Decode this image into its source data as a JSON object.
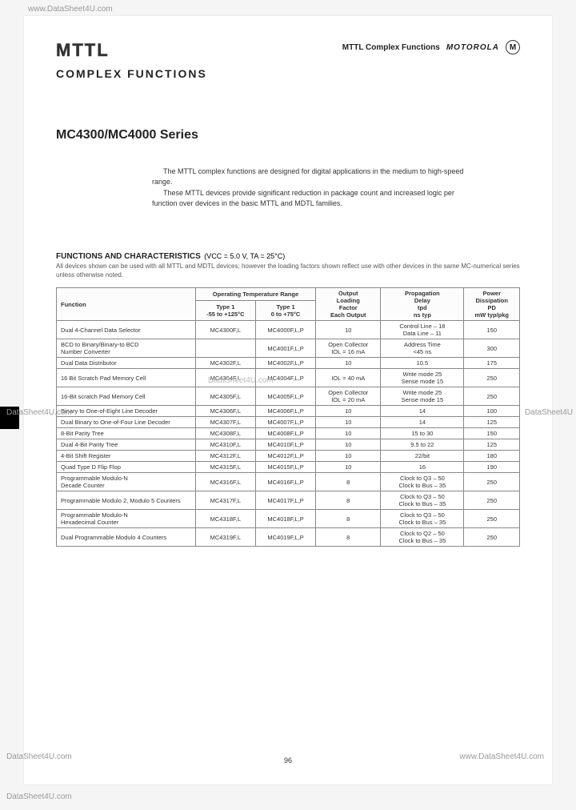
{
  "watermarks": {
    "top_left": "www.DataSheet4U.com",
    "mid_left": "DataSheet4U.com",
    "mid_right": "DataSheet4U",
    "bot_left1": "DataSheet4U.com",
    "bot_right": "www.DataSheet4U.com",
    "bot_left2": "DataSheet4U.com"
  },
  "header": {
    "logo": "MTTL",
    "right_text": "MTTL Complex Functions",
    "brand": "MOTOROLA",
    "brand_icon": "M"
  },
  "subtitle": "COMPLEX FUNCTIONS",
  "series": "MC4300/MC4000 Series",
  "intro": {
    "p1": "The MTTL complex functions are designed for digital applications in the medium to high-speed range.",
    "p2": "These MTTL devices provide significant reduction in package count and increased logic per function over devices in the basic MTTL and MDTL families."
  },
  "table_title": "FUNCTIONS AND CHARACTERISTICS",
  "table_cond": "(VCC = 5.0 V, TA = 25°C)",
  "table_sub": "All devices shown can be used with all MTTL and MDTL devices; however the loading factors shown reflect use with other devices in the same MC-numerical series unless otherwise noted.",
  "cols": {
    "function": "Function",
    "otr": "Operating Temperature Range",
    "type1a": "Type 1\n-55 to +125°C",
    "type1b": "Type 1\n0 to +75°C",
    "load": "Output\nLoading\nFactor\nEach Output",
    "prop": "Propagation\nDelay\ntpd\nns typ",
    "pow": "Power\nDissipation\nPD\nmW typ/pkg"
  },
  "rows": [
    {
      "fn": "Dual 4-Channel Data Selector",
      "t1": "MC4300F,L",
      "t2": "MC4000F,L,P",
      "load": "10",
      "prop": "Control Line – 18\nData Line – 11",
      "pow": "150"
    },
    {
      "fn": "BCD to Binary/Binary-to BCD\nNumber Converter",
      "t1": "",
      "t2": "MC4001F,L,P",
      "load": "Open Collector\nIOL = 16 mA",
      "prop": "Address Time\n<45 ns",
      "pow": "300"
    },
    {
      "fn": "Dual Data Distributor",
      "t1": "MC4302F,L",
      "t2": "MC4002F,L,P",
      "load": "10",
      "prop": "10.5",
      "pow": "175"
    },
    {
      "fn": "16 Bit Scratch Pad Memory Cell",
      "t1": "MC4304F,L",
      "t2": "MC4004F,L,P",
      "load": "IOL = 40 mA",
      "prop": "Write mode 25\nSense mode 15",
      "pow": "250"
    },
    {
      "fn": "16-Bit scratch Pad Memory Cell",
      "t1": "MC4305F,L",
      "t2": "MC4005F,L,P",
      "load": "Open Collector\nIOL = 20 mA",
      "prop": "Write mode 25\nSense mode 15",
      "pow": "250"
    },
    {
      "fn": "Binary to One-of-Eight Line Decoder",
      "t1": "MC4306F,L",
      "t2": "MC4006F,L,P",
      "load": "10",
      "prop": "14",
      "pow": "100"
    },
    {
      "fn": "Dual Binary to One-of-Four Line Decoder",
      "t1": "MC4307F,L",
      "t2": "MC4007F,L,P",
      "load": "10",
      "prop": "14",
      "pow": "125"
    },
    {
      "fn": "8-Bit Parity Tree",
      "t1": "MC4308F,L",
      "t2": "MC4008F,L,P",
      "load": "10",
      "prop": "15 to 30",
      "pow": "150"
    },
    {
      "fn": "Dual 4-Bit Parity Tree",
      "t1": "MC4310F,L",
      "t2": "MC4010F,L,P",
      "load": "10",
      "prop": "9.5 to 22",
      "pow": "125"
    },
    {
      "fn": "4-Bit Shift Register",
      "t1": "MC4312F,L",
      "t2": "MC4012F,L,P",
      "load": "10",
      "prop": "22/bit",
      "pow": "180"
    },
    {
      "fn": "Quad Type D Flip Flop",
      "t1": "MC4315F,L",
      "t2": "MC4015F,L,P",
      "load": "10",
      "prop": "16",
      "pow": "190"
    },
    {
      "fn": "Programmable Modulo-N\nDecade Counter",
      "t1": "MC4316F,L",
      "t2": "MC4016F,L,P",
      "load": "8",
      "prop": "Clock to Q3 – 50\nClock to Bus – 35",
      "pow": "250"
    },
    {
      "fn": "Programmable Modulo 2, Modulo 5 Counters",
      "t1": "MC4317F,L",
      "t2": "MC4017F,L,P",
      "load": "8",
      "prop": "Clock to Q3 – 50\nClock to Bus – 35",
      "pow": "250"
    },
    {
      "fn": "Programmable Modulo-N\nHexadecimal Counter",
      "t1": "MC4318F,L",
      "t2": "MC4018F,L,P",
      "load": "8",
      "prop": "Clock to Q3 – 50\nClock to Bus – 35",
      "pow": "250"
    },
    {
      "fn": "Dual Programmable Modulo 4 Counters",
      "t1": "MC4319F,L",
      "t2": "MC4019F,L,P",
      "load": "8",
      "prop": "Clock to Q2 – 50\nClock to Bus – 35",
      "pow": "250"
    }
  ],
  "page_num": "96"
}
